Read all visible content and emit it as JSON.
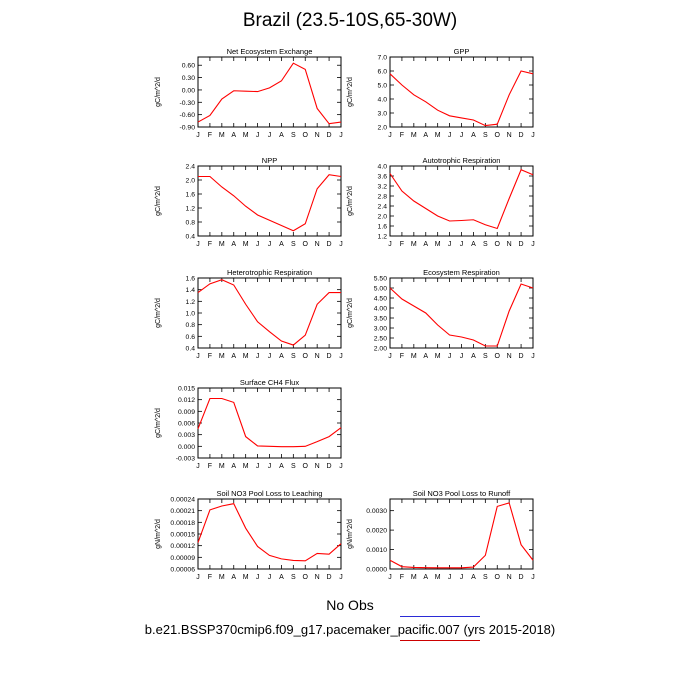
{
  "figure": {
    "title": "Brazil (23.5-10S,65-30W)",
    "legend": {
      "label": "No Obs",
      "line_color": "#2b2bd6"
    },
    "caption": "b.e21.BSSP370cmip6.f09_g17.pacemaker_pacific.007 (yrs 2015-2018)",
    "caption_underline_color": "#cc0000",
    "series_color": "#ff0000"
  },
  "chart_data": [
    {
      "type": "line",
      "title": "Net Ecosystem Exchange",
      "ylabel": "gC/m^2/d",
      "x": [
        "J",
        "F",
        "M",
        "A",
        "M",
        "J",
        "J",
        "A",
        "S",
        "O",
        "N",
        "D",
        "J"
      ],
      "values": [
        -0.78,
        -0.62,
        -0.22,
        -0.02,
        -0.03,
        -0.04,
        0.05,
        0.22,
        0.65,
        0.5,
        -0.45,
        -0.82,
        -0.78
      ],
      "ylim": [
        -0.9,
        0.8
      ],
      "yticks": [
        -0.9,
        -0.6,
        -0.3,
        0.0,
        0.3,
        0.6
      ],
      "ytick_labels": [
        "-0.90",
        "-0.60",
        "-0.30",
        "0.00",
        "0.30",
        "0.60"
      ]
    },
    {
      "type": "line",
      "title": "GPP",
      "ylabel": "gC/m^2/d",
      "x": [
        "J",
        "F",
        "M",
        "A",
        "M",
        "J",
        "J",
        "A",
        "S",
        "O",
        "N",
        "D",
        "J"
      ],
      "values": [
        5.8,
        5.0,
        4.3,
        3.8,
        3.2,
        2.8,
        2.65,
        2.5,
        2.1,
        2.2,
        4.3,
        6.0,
        5.8
      ],
      "ylim": [
        2.0,
        7.0
      ],
      "yticks": [
        2.0,
        3.0,
        4.0,
        5.0,
        6.0,
        7.0
      ],
      "ytick_labels": [
        "2.0",
        "3.0",
        "4.0",
        "5.0",
        "6.0",
        "7.0"
      ]
    },
    {
      "type": "line",
      "title": "NPP",
      "ylabel": "gC/m^2/d",
      "x": [
        "J",
        "F",
        "M",
        "A",
        "M",
        "J",
        "J",
        "A",
        "S",
        "O",
        "N",
        "D",
        "J"
      ],
      "values": [
        2.1,
        2.1,
        1.8,
        1.55,
        1.25,
        1.0,
        0.85,
        0.7,
        0.55,
        0.75,
        1.75,
        2.15,
        2.1
      ],
      "ylim": [
        0.4,
        2.4
      ],
      "yticks": [
        0.4,
        0.8,
        1.2,
        1.6,
        2.0,
        2.4
      ],
      "ytick_labels": [
        "0.4",
        "0.8",
        "1.2",
        "1.6",
        "2.0",
        "2.4"
      ]
    },
    {
      "type": "line",
      "title": "Autotrophic Respiration",
      "ylabel": "gC/m^2/d",
      "x": [
        "J",
        "F",
        "M",
        "A",
        "M",
        "J",
        "J",
        "A",
        "S",
        "O",
        "N",
        "D",
        "J"
      ],
      "values": [
        3.7,
        3.0,
        2.6,
        2.3,
        2.0,
        1.8,
        1.82,
        1.85,
        1.65,
        1.5,
        2.7,
        3.85,
        3.65
      ],
      "ylim": [
        1.2,
        4.0
      ],
      "yticks": [
        1.2,
        1.6,
        2.0,
        2.4,
        2.8,
        3.2,
        3.6,
        4.0
      ],
      "ytick_labels": [
        "1.2",
        "1.6",
        "2.0",
        "2.4",
        "2.8",
        "3.2",
        "3.6",
        "4.0"
      ]
    },
    {
      "type": "line",
      "title": "Heterotrophic Respiration",
      "ylabel": "gC/m^2/d",
      "x": [
        "J",
        "F",
        "M",
        "A",
        "M",
        "J",
        "J",
        "A",
        "S",
        "O",
        "N",
        "D",
        "J"
      ],
      "values": [
        1.35,
        1.5,
        1.57,
        1.48,
        1.15,
        0.85,
        0.68,
        0.52,
        0.45,
        0.62,
        1.15,
        1.35,
        1.35
      ],
      "ylim": [
        0.4,
        1.6
      ],
      "yticks": [
        0.4,
        0.6,
        0.8,
        1.0,
        1.2,
        1.4,
        1.6
      ],
      "ytick_labels": [
        "0.4",
        "0.6",
        "0.8",
        "1.0",
        "1.2",
        "1.4",
        "1.6"
      ]
    },
    {
      "type": "line",
      "title": "Ecosystem Respiration",
      "ylabel": "gC/m^2/d",
      "x": [
        "J",
        "F",
        "M",
        "A",
        "M",
        "J",
        "J",
        "A",
        "S",
        "O",
        "N",
        "D",
        "J"
      ],
      "values": [
        5.0,
        4.45,
        4.1,
        3.75,
        3.15,
        2.65,
        2.55,
        2.4,
        2.1,
        2.1,
        3.85,
        5.2,
        5.0
      ],
      "ylim": [
        2.0,
        5.5
      ],
      "yticks": [
        2.0,
        2.5,
        3.0,
        3.5,
        4.0,
        4.5,
        5.0,
        5.5
      ],
      "ytick_labels": [
        "2.00",
        "2.50",
        "3.00",
        "3.50",
        "4.00",
        "4.50",
        "5.00",
        "5.50"
      ]
    },
    {
      "type": "line",
      "title": "Surface CH4 Flux",
      "ylabel": "gC/m^2/d",
      "x": [
        "J",
        "F",
        "M",
        "A",
        "M",
        "J",
        "J",
        "A",
        "S",
        "O",
        "N",
        "D",
        "J"
      ],
      "values": [
        0.0045,
        0.0123,
        0.0123,
        0.0113,
        0.0025,
        0.0001,
        0.0,
        -0.0001,
        -0.0001,
        0.0,
        0.0012,
        0.0025,
        0.0048
      ],
      "ylim": [
        -0.003,
        0.015
      ],
      "yticks": [
        -0.003,
        0.0,
        0.003,
        0.006,
        0.009,
        0.012,
        0.015
      ],
      "ytick_labels": [
        "-0.003",
        "0.000",
        "0.003",
        "0.006",
        "0.009",
        "0.012",
        "0.015"
      ]
    },
    {
      "type": "line",
      "title": "Soil NO3 Pool Loss to Leaching",
      "ylabel": "gN/m^2/d",
      "x": [
        "J",
        "F",
        "M",
        "A",
        "M",
        "J",
        "J",
        "A",
        "S",
        "O",
        "N",
        "D",
        "J"
      ],
      "values": [
        0.000128,
        0.000212,
        0.000222,
        0.000228,
        0.000165,
        0.000118,
        9.5e-05,
        8.6e-05,
        8.2e-05,
        8.1e-05,
        0.0001,
        9.8e-05,
        0.000125
      ],
      "ylim": [
        6e-05,
        0.00024
      ],
      "yticks": [
        6e-05,
        9e-05,
        0.00012,
        0.00015,
        0.00018,
        0.00021,
        0.00024
      ],
      "ytick_labels": [
        "0.00006",
        "0.00009",
        "0.00012",
        "0.00015",
        "0.00018",
        "0.00021",
        "0.00024"
      ]
    },
    {
      "type": "line",
      "title": "Soil NO3 Pool Loss to Runoff",
      "ylabel": "gN/m^2/d",
      "x": [
        "J",
        "F",
        "M",
        "A",
        "M",
        "J",
        "J",
        "A",
        "S",
        "O",
        "N",
        "D",
        "J"
      ],
      "values": [
        0.00045,
        0.00012,
        8e-05,
        7e-05,
        6e-05,
        6e-05,
        6e-05,
        0.0001,
        0.0007,
        0.00322,
        0.0034,
        0.00125,
        0.00045
      ],
      "ylim": [
        0.0,
        0.0036
      ],
      "yticks": [
        0.0,
        0.001,
        0.002,
        0.003
      ],
      "ytick_labels": [
        "0.0000",
        "0.0010",
        "0.0020",
        "0.0030"
      ]
    }
  ]
}
